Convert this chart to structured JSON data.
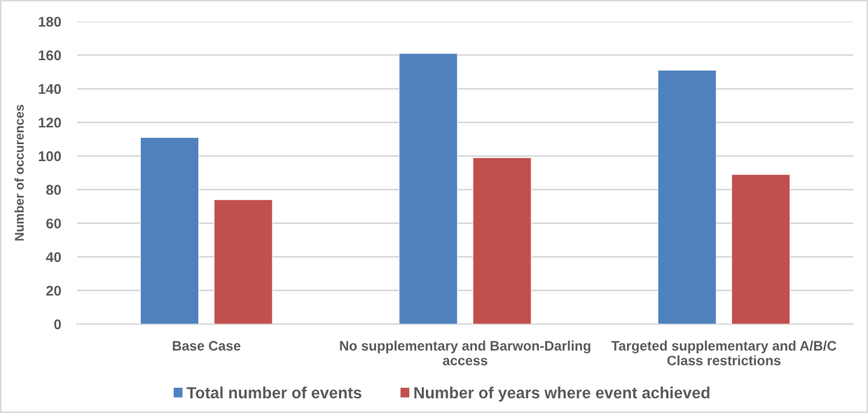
{
  "chart_data": {
    "type": "bar",
    "ylabel": "Number of occurences",
    "categories": [
      "Base Case",
      "No supplementary and Barwon-Darling access",
      "Targeted supplementary and A/B/C Class restrictions"
    ],
    "series": [
      {
        "name": "Total number of events",
        "color": "#4f81bd",
        "values": [
          111,
          161,
          151
        ]
      },
      {
        "name": "Number of years where event achieved",
        "color": "#c0504d",
        "values": [
          74,
          99,
          89
        ]
      }
    ],
    "ylim": [
      0,
      180
    ],
    "yticks": [
      0,
      20,
      40,
      60,
      80,
      100,
      120,
      140,
      160,
      180
    ],
    "grid": "y",
    "legend": "bottom"
  }
}
